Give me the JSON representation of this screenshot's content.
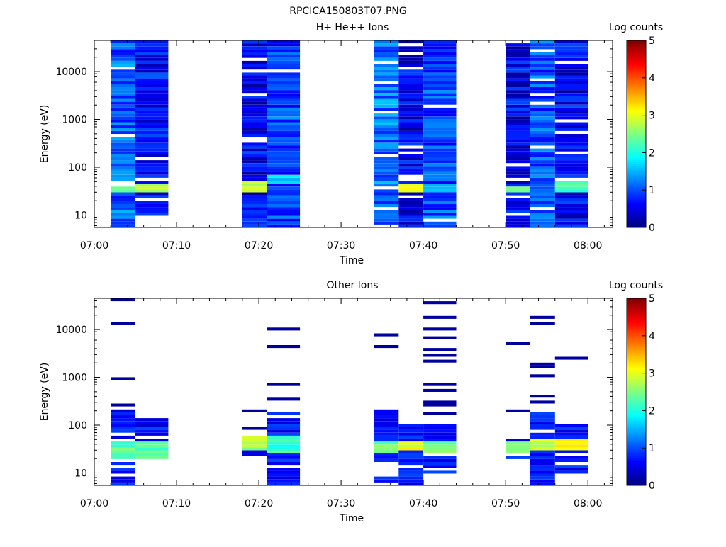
{
  "figure": {
    "title": "RPCICA150803T07.PNG"
  },
  "chart_data": [
    {
      "type": "heatmap",
      "title": "H+ He++ Ions",
      "xlabel": "Time",
      "ylabel": "Energy (eV)",
      "x_ticks": [
        "07:00",
        "07:10",
        "07:20",
        "07:30",
        "07:40",
        "07:50",
        "08:00"
      ],
      "x_range": [
        "07:00",
        "08:03"
      ],
      "y_scale": "log",
      "y_ticks": [
        "10",
        "100",
        "1000",
        "10000"
      ],
      "y_range": [
        5.5,
        45000
      ],
      "colorbar": {
        "label": "Log counts",
        "ticks": [
          "0",
          "1",
          "2",
          "3",
          "4",
          "5"
        ],
        "range": [
          0,
          5
        ]
      },
      "legend_position": "right",
      "scans": [
        {
          "t0": "07:02",
          "t1": "07:05",
          "pattern": "dense",
          "level": 1.1,
          "seed": 11,
          "ebot": 5.5,
          "etop": 45000,
          "peak": [
            30,
            45,
            2.3
          ]
        },
        {
          "t0": "07:05",
          "t1": "07:09",
          "pattern": "dense",
          "level": 0.65,
          "seed": 23,
          "ebot": 9.5,
          "etop": 45000,
          "peak": [
            28,
            45,
            2.7
          ]
        },
        {
          "t0": "07:18",
          "t1": "07:21",
          "pattern": "dense",
          "level": 0.55,
          "seed": 37,
          "ebot": 5.5,
          "etop": 45000,
          "peak": [
            30,
            52,
            2.8
          ]
        },
        {
          "t0": "07:21",
          "t1": "07:25",
          "pattern": "dense",
          "level": 0.95,
          "seed": 41,
          "ebot": 5.5,
          "etop": 45000,
          "peak": [
            45,
            65,
            1.7
          ]
        },
        {
          "t0": "07:34",
          "t1": "07:37",
          "pattern": "dense",
          "level": 1.15,
          "seed": 53,
          "ebot": 5.5,
          "etop": 45000,
          "peak": [
            50,
            70,
            1.0
          ]
        },
        {
          "t0": "07:37",
          "t1": "07:40",
          "pattern": "dense",
          "level": 0.55,
          "seed": 67,
          "ebot": 5.5,
          "etop": 45000,
          "peak": [
            30,
            45,
            3.0
          ]
        },
        {
          "t0": "07:40",
          "t1": "07:44",
          "pattern": "dense",
          "level": 1.0,
          "seed": 79,
          "ebot": 5.5,
          "etop": 45000,
          "peak": [
            30,
            45,
            1.6
          ]
        },
        {
          "t0": "07:50",
          "t1": "07:53",
          "pattern": "dense",
          "level": 0.55,
          "seed": 83,
          "ebot": 5.5,
          "etop": 45000,
          "peak": [
            28,
            42,
            2.5
          ]
        },
        {
          "t0": "07:53",
          "t1": "07:56",
          "pattern": "dense",
          "level": 1.0,
          "seed": 97,
          "ebot": 5.5,
          "etop": 45000,
          "peak": [
            30,
            45,
            1.2
          ]
        },
        {
          "t0": "07:56",
          "t1": "08:00",
          "pattern": "dense",
          "level": 0.6,
          "seed": 101,
          "ebot": 5.5,
          "etop": 45000,
          "peak": [
            30,
            60,
            2.2
          ]
        }
      ]
    },
    {
      "type": "heatmap",
      "title": "Other Ions",
      "xlabel": "Time",
      "ylabel": "Energy (eV)",
      "x_ticks": [
        "07:00",
        "07:10",
        "07:20",
        "07:30",
        "07:40",
        "07:50",
        "08:00"
      ],
      "x_range": [
        "07:00",
        "08:03"
      ],
      "y_scale": "log",
      "y_ticks": [
        "10",
        "100",
        "1000",
        "10000"
      ],
      "y_range": [
        5.5,
        45000
      ],
      "colorbar": {
        "label": "Log counts",
        "ticks": [
          "0",
          "1",
          "2",
          "3",
          "4",
          "5"
        ],
        "range": [
          0,
          5
        ]
      },
      "legend_position": "right",
      "scans": [
        {
          "t0": "07:02",
          "t1": "07:05",
          "pattern": "sparse",
          "seed": 13,
          "ebot": 5.5,
          "ebodyTop": 220,
          "lines": [
            40000,
            14000,
            1000,
            270
          ],
          "band": [
            20,
            45,
            2.3
          ],
          "lowblock": [
            5.5,
            15
          ]
        },
        {
          "t0": "07:05",
          "t1": "07:09",
          "pattern": "sparse",
          "seed": 29,
          "ebot": 20,
          "ebodyTop": 160,
          "lines": [],
          "band": [
            20,
            45,
            2.2
          ]
        },
        {
          "t0": "07:18",
          "t1": "07:21",
          "pattern": "sparse",
          "seed": 31,
          "ebot": 20,
          "ebodyTop": 60,
          "lines": [
            190,
            80
          ],
          "band": [
            28,
            60,
            2.7
          ]
        },
        {
          "t0": "07:21",
          "t1": "07:25",
          "pattern": "sparse",
          "seed": 43,
          "ebot": 5.5,
          "ebodyTop": 200,
          "lines": [
            9700,
            4300,
            720,
            350
          ],
          "band": [
            25,
            60,
            2.2
          ]
        },
        {
          "t0": "07:34",
          "t1": "07:37",
          "pattern": "sparse",
          "seed": 59,
          "ebot": 15,
          "ebodyTop": 230,
          "lines": [
            7500,
            4300
          ],
          "band": [
            25,
            45,
            2.4
          ],
          "lowblock": [
            5.5,
            9
          ]
        },
        {
          "t0": "07:37",
          "t1": "07:40",
          "pattern": "sparse",
          "seed": 61,
          "ebot": 5.5,
          "ebodyTop": 110,
          "lines": [],
          "band": [
            30,
            45,
            3.0
          ]
        },
        {
          "t0": "07:40",
          "t1": "07:44",
          "pattern": "sparse",
          "seed": 71,
          "ebot": 5.5,
          "ebodyTop": 120,
          "lines": [
            38000,
            19000,
            11000,
            7200,
            3700,
            2800,
            2300,
            680,
            520,
            320,
            260,
            170
          ],
          "band": [
            25,
            45,
            2.4
          ]
        },
        {
          "t0": "07:50",
          "t1": "07:53",
          "pattern": "sparse",
          "seed": 89,
          "ebot": 15,
          "ebodyTop": 60,
          "lines": [
            5300,
            190
          ],
          "band": [
            25,
            45,
            2.5
          ]
        },
        {
          "t0": "07:53",
          "t1": "07:56",
          "pattern": "sparse",
          "seed": 103,
          "ebot": 5.5,
          "ebodyTop": 200,
          "lines": [
            18000,
            13000,
            1900,
            1600,
            1100,
            410,
            300
          ],
          "band": [
            30,
            50,
            2.8
          ]
        },
        {
          "t0": "07:56",
          "t1": "08:00",
          "pattern": "sparse",
          "seed": 107,
          "ebot": 9.5,
          "ebodyTop": 110,
          "lines": [
            2400
          ],
          "band": [
            28,
            55,
            3.0
          ]
        }
      ]
    }
  ]
}
